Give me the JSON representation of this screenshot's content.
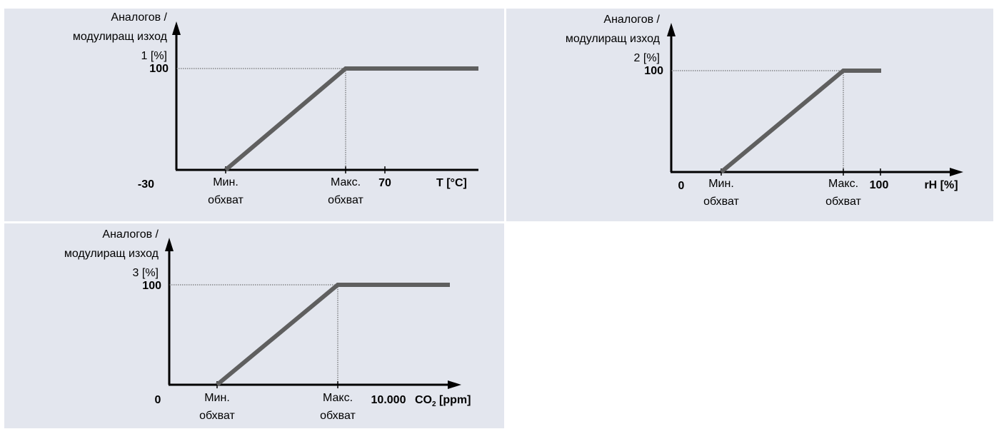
{
  "colors": {
    "panel_bg": "#E3E6EE",
    "curve": "#5F5F5F",
    "axis": "#000000"
  },
  "panels": [
    {
      "y_title_line1": "Аналогов /",
      "y_title_line2": "модулиращ изход",
      "y_title_line3": "1 [%]",
      "y_tick_top": "100",
      "x_min_label": "-30",
      "x_end_label": "70",
      "x_axis_label": "T [°C]",
      "x_axis_sub": "",
      "x_axis_unit": "",
      "min_label_line1": "Мин.",
      "min_label_line2": "обхват",
      "max_label_line1": "Макс.",
      "max_label_line2": "обхват"
    },
    {
      "y_title_line1": "Аналогов /",
      "y_title_line2": "модулиращ изход",
      "y_title_line3": "2 [%]",
      "y_tick_top": "100",
      "x_min_label": "0",
      "x_end_label": "100",
      "x_axis_label": "rH [%]",
      "x_axis_sub": "",
      "x_axis_unit": "",
      "min_label_line1": "Мин.",
      "min_label_line2": "обхват",
      "max_label_line1": "Макс.",
      "max_label_line2": "обхват"
    },
    {
      "y_title_line1": "Аналогов /",
      "y_title_line2": "модулиращ изход",
      "y_title_line3": "3 [%]",
      "y_tick_top": "100",
      "x_min_label": "0",
      "x_end_label": "10.000",
      "x_axis_label": "CO",
      "x_axis_sub": "2",
      "x_axis_unit": " [ppm]",
      "min_label_line1": "Мин.",
      "min_label_line2": "обхват",
      "max_label_line1": "Макс.",
      "max_label_line2": "обхват"
    }
  ],
  "chart_data": [
    {
      "type": "line",
      "xlabel": "T [°C]",
      "ylabel": "Аналогов / модулиращ изход 1 [%]",
      "x_start": -30,
      "x_end": 70,
      "x_range_markers": [
        "Мин. обхват",
        "Макс. обхват"
      ],
      "series": [
        {
          "x": [
            "Мин. обхват",
            "Макс. обхват",
            70
          ],
          "y": [
            0,
            100,
            100
          ]
        }
      ],
      "ylim": [
        0,
        100
      ],
      "y_ticks": [
        100
      ]
    },
    {
      "type": "line",
      "xlabel": "rH [%]",
      "ylabel": "Аналогов / модулиращ изход 2 [%]",
      "x_start": 0,
      "x_end": 100,
      "x_range_markers": [
        "Мин. обхват",
        "Макс. обхват"
      ],
      "series": [
        {
          "x": [
            "Мин. обхват",
            "Макс. обхват",
            100
          ],
          "y": [
            0,
            100,
            100
          ]
        }
      ],
      "ylim": [
        0,
        100
      ],
      "y_ticks": [
        100
      ]
    },
    {
      "type": "line",
      "xlabel": "CO2 [ppm]",
      "ylabel": "Аналогов / модулиращ изход 3 [%]",
      "x_start": 0,
      "x_end": 10000,
      "x_range_markers": [
        "Мин. обхват",
        "Макс. обхват"
      ],
      "series": [
        {
          "x": [
            "Мин. обхват",
            "Макс. обхват",
            10000
          ],
          "y": [
            0,
            100,
            100
          ]
        }
      ],
      "ylim": [
        0,
        100
      ],
      "y_ticks": [
        100
      ]
    }
  ]
}
